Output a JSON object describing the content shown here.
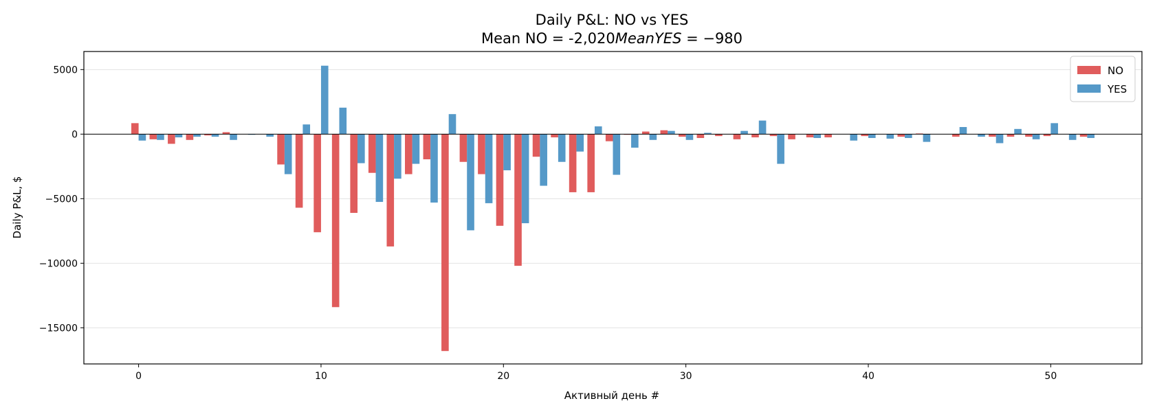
{
  "chart_data": {
    "type": "bar",
    "title": "Daily P&L: NO vs YES",
    "subtitle": "Mean NO = -2,020$ Mean YES = $-980",
    "xlabel": "Активный день #",
    "ylabel": "Daily P&L, $",
    "xlim": [
      -3,
      55
    ],
    "ylim": [
      -17800,
      6400
    ],
    "xticks": [
      0,
      10,
      20,
      30,
      40,
      50
    ],
    "yticks": [
      5000,
      0,
      -5000,
      -10000,
      -15000
    ],
    "ytick_labels": [
      "5000",
      "0",
      "−5000",
      "−10000",
      "−15000"
    ],
    "grid": "horizontal",
    "zero_line": true,
    "legend_position": "top-right",
    "series": [
      {
        "name": "NO",
        "color": "#e05c5c",
        "x": [
          0,
          1,
          2,
          3,
          4,
          5,
          6,
          7,
          8,
          9,
          10,
          11,
          12,
          13,
          14,
          15,
          16,
          17,
          18,
          19,
          20,
          21,
          22,
          23,
          24,
          25,
          26,
          27,
          28,
          29,
          30,
          31,
          32,
          33,
          34,
          35,
          36,
          37,
          38,
          39,
          40,
          41,
          42,
          43,
          44,
          45,
          46,
          47,
          48,
          49,
          50,
          51,
          52
        ],
        "values": [
          850,
          -400,
          -750,
          -450,
          -100,
          150,
          0,
          0,
          -2350,
          -5700,
          -7600,
          -13400,
          -6100,
          -3000,
          -8700,
          -3100,
          -1950,
          -16800,
          -2150,
          -3100,
          -7100,
          -10200,
          -1750,
          -250,
          -4500,
          -4500,
          -550,
          -50,
          200,
          300,
          -200,
          -300,
          -150,
          -400,
          -250,
          -150,
          -400,
          -250,
          -250,
          0,
          -150,
          0,
          -200,
          50,
          0,
          -200,
          0,
          -200,
          -200,
          -200,
          -150,
          0,
          -200
        ]
      },
      {
        "name": "YES",
        "color": "#5599c8",
        "x": [
          0,
          1,
          2,
          3,
          4,
          5,
          6,
          7,
          8,
          9,
          10,
          11,
          12,
          13,
          14,
          15,
          16,
          17,
          18,
          19,
          20,
          21,
          22,
          23,
          24,
          25,
          26,
          27,
          28,
          29,
          30,
          31,
          32,
          33,
          34,
          35,
          36,
          37,
          38,
          39,
          40,
          41,
          42,
          43,
          44,
          45,
          46,
          47,
          48,
          49,
          50,
          51,
          52
        ],
        "values": [
          -500,
          -450,
          -250,
          -200,
          -200,
          -450,
          -50,
          -200,
          -3100,
          750,
          5300,
          2050,
          -2250,
          -5250,
          -3450,
          -2300,
          -5300,
          1550,
          -7450,
          -5350,
          -2800,
          -6900,
          -4000,
          -2150,
          -1350,
          600,
          -3150,
          -1050,
          -450,
          250,
          -450,
          100,
          0,
          250,
          1050,
          -2300,
          0,
          -300,
          0,
          -500,
          -300,
          -350,
          -300,
          -600,
          0,
          550,
          -200,
          -700,
          400,
          -400,
          850,
          -450,
          -300
        ]
      }
    ]
  }
}
